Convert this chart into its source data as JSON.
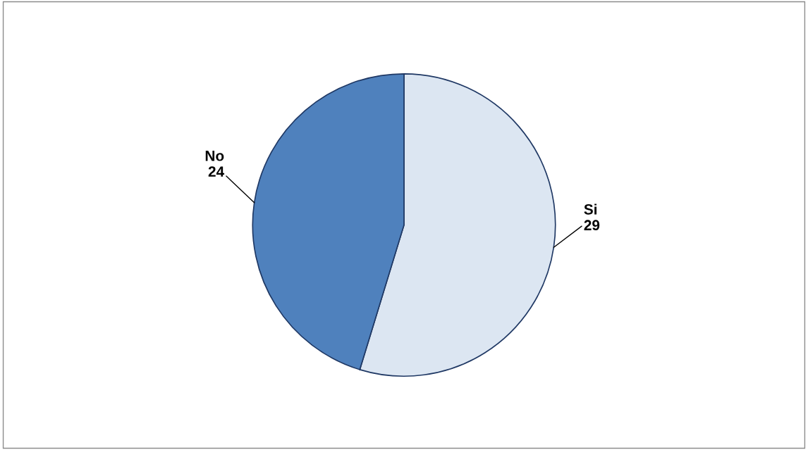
{
  "chart_data": {
    "type": "pie",
    "categories": [
      "Si",
      "No"
    ],
    "values": [
      29,
      24
    ],
    "colors": [
      "#dce6f2",
      "#4f81bd"
    ],
    "data_labels": true
  }
}
